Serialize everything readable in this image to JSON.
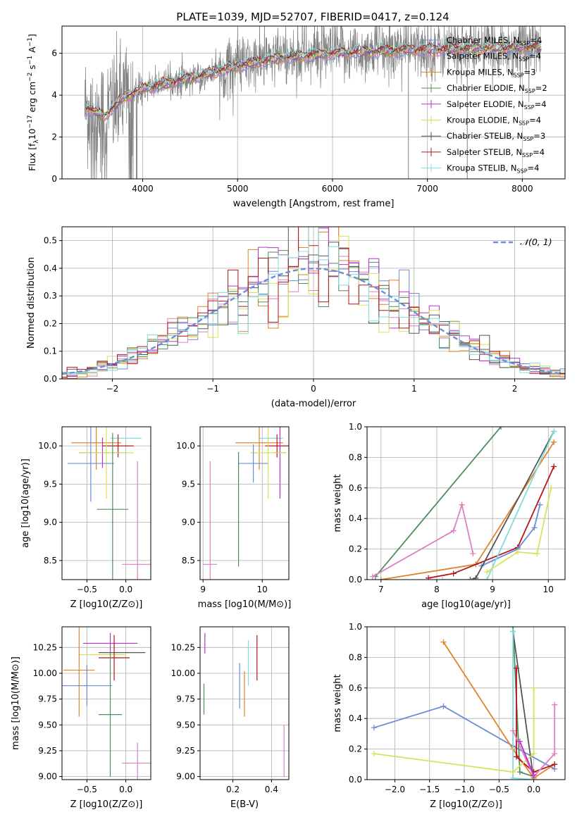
{
  "figure": {
    "title": "PLATE=1039, MJD=52707, FIBERID=0417, z=0.124"
  },
  "colors": {
    "Chabrier MILES": "#6b8dd6",
    "Salpeter MILES": "#e07fbf",
    "Kroupa MILES": "#e0842a",
    "Chabrier ELODIE": "#4f8f5a",
    "Salpeter ELODIE": "#b633c9",
    "Kroupa ELODIE": "#d6e25a",
    "Chabrier STELIB": "#555555",
    "Salpeter STELIB": "#b5151b",
    "Kroupa STELIB": "#7fdcdc",
    "data": "#808080",
    "normal": "#6b8dd6"
  },
  "chart_data": [
    {
      "id": "spectrum",
      "type": "line",
      "xlabel": "wavelength [Angstrom, rest frame]",
      "ylabel_parts": {
        "a": "Flux [f",
        "b": "λ",
        "c": "10",
        "d": "−17",
        "e": " erg cm",
        "f": "−2",
        "g": " s",
        "h": "−1",
        "i": " A",
        "j": "−1",
        "k": "]"
      },
      "xlim": [
        3150,
        8450
      ],
      "ylim": [
        0,
        7.3
      ],
      "xticks": [
        4000,
        5000,
        6000,
        7000,
        8000
      ],
      "yticks": [
        0,
        2,
        4,
        6
      ],
      "legend": [
        {
          "name": "Chabrier MILES",
          "n": "4",
          "key": "Chabrier MILES"
        },
        {
          "name": "Salpeter MILES",
          "n": "4",
          "key": "Salpeter MILES"
        },
        {
          "name": "Kroupa MILES",
          "n": "3",
          "key": "Kroupa MILES"
        },
        {
          "name": "Chabrier ELODIE",
          "n": "2",
          "key": "Chabrier ELODIE"
        },
        {
          "name": "Salpeter ELODIE",
          "n": "4",
          "key": "Salpeter ELODIE"
        },
        {
          "name": "Kroupa ELODIE",
          "n": "4",
          "key": "Kroupa ELODIE"
        },
        {
          "name": "Chabrier STELIB",
          "n": "3",
          "key": "Chabrier STELIB"
        },
        {
          "name": "Salpeter STELIB",
          "n": "4",
          "key": "Salpeter STELIB"
        },
        {
          "name": "Kroupa STELIB",
          "n": "4",
          "key": "Kroupa STELIB"
        }
      ],
      "legend_placement": "right",
      "continuum_points": [
        [
          3400,
          3.4
        ],
        [
          3600,
          3.0
        ],
        [
          3800,
          3.9
        ],
        [
          4000,
          4.3
        ],
        [
          4300,
          4.6
        ],
        [
          4600,
          4.9
        ],
        [
          5000,
          5.4
        ],
        [
          5500,
          5.8
        ],
        [
          6000,
          6.0
        ],
        [
          6500,
          6.1
        ],
        [
          7000,
          6.2
        ],
        [
          7500,
          6.2
        ],
        [
          8000,
          6.3
        ],
        [
          8200,
          6.3
        ]
      ],
      "data_range": [
        3390,
        8190
      ],
      "model_range": [
        3400,
        8200
      ]
    },
    {
      "id": "residuals",
      "type": "histogram",
      "xlabel": "(data-model)/error",
      "ylabel": "Normed distribution",
      "xlim": [
        -2.5,
        2.5
      ],
      "ylim": [
        0,
        0.55
      ],
      "xticks": [
        -2,
        -1,
        0,
        1,
        2
      ],
      "yticks": [
        0,
        0.1,
        0.2,
        0.3,
        0.4,
        0.5
      ],
      "bin_width": 0.1,
      "legend": [
        "𝒩(0, 1)"
      ],
      "legend_placement": "top-right"
    },
    {
      "id": "age_vs_Z",
      "type": "errorbar",
      "xlabel": "Z [log10(Z/Z⊙)]",
      "ylabel": "age [log10(age/yr)]",
      "xlim": [
        -0.82,
        0.32
      ],
      "ylim": [
        8.25,
        10.25
      ],
      "xticks": [
        -0.5,
        0.0
      ],
      "yticks": [
        8.5,
        9.0,
        9.5,
        10.0
      ],
      "points": [
        {
          "key": "Kroupa STELIB",
          "x": 0.0,
          "xerr": 0.2,
          "y": 10.1,
          "yerr": 0.0
        },
        {
          "key": "Kroupa MILES",
          "x": -0.38,
          "xerr": 0.32,
          "y": 10.04,
          "yerr": 0.35
        },
        {
          "key": "Salpeter STELIB",
          "x": -0.1,
          "xerr": 0.2,
          "y": 10.0,
          "yerr": 0.15
        },
        {
          "key": "Salpeter ELODIE",
          "x": -0.3,
          "xerr": 0.3,
          "y": 9.91,
          "yerr": 0.2
        },
        {
          "key": "Kroupa ELODIE",
          "x": -0.25,
          "xerr": 0.35,
          "y": 9.91,
          "yerr": 0.6
        },
        {
          "key": "Chabrier MILES",
          "x": -0.45,
          "xerr": 0.3,
          "y": 9.77,
          "yerr": 0.5
        },
        {
          "key": "Chabrier ELODIE",
          "x": -0.17,
          "xerr": 0.2,
          "y": 9.17,
          "yerr": 1.0
        },
        {
          "key": "Salpeter MILES",
          "x": 0.15,
          "xerr": 0.2,
          "y": 8.45,
          "yerr": 1.35
        }
      ]
    },
    {
      "id": "age_vs_mass",
      "type": "errorbar",
      "xlabel": "mass [log10(M/M⊙)]",
      "ylabel": "",
      "xlim": [
        8.95,
        10.45
      ],
      "ylim": [
        8.25,
        10.25
      ],
      "xticks": [
        9,
        10
      ],
      "yticks": [
        8.5,
        9.0,
        9.5,
        10.0
      ],
      "points": [
        {
          "key": "Kroupa STELIB",
          "x": 10.15,
          "xerr": 0.2,
          "y": 10.1,
          "yerr": 0.0
        },
        {
          "key": "Kroupa MILES",
          "x": 9.95,
          "xerr": 0.4,
          "y": 10.04,
          "yerr": 0.35
        },
        {
          "key": "Salpeter STELIB",
          "x": 10.25,
          "xerr": 0.2,
          "y": 10.0,
          "yerr": 0.15
        },
        {
          "key": "Salpeter ELODIE",
          "x": 10.3,
          "xerr": 0.1,
          "y": 9.91,
          "yerr": 0.6
        },
        {
          "key": "Kroupa ELODIE",
          "x": 10.1,
          "xerr": 0.3,
          "y": 9.91,
          "yerr": 0.6
        },
        {
          "key": "Chabrier MILES",
          "x": 9.85,
          "xerr": 0.25,
          "y": 9.77,
          "yerr": 0.25
        },
        {
          "key": "Chabrier ELODIE",
          "x": 9.6,
          "xerr": 0.0,
          "y": 9.17,
          "yerr": 0.75
        },
        {
          "key": "Salpeter MILES",
          "x": 9.12,
          "xerr": 0.12,
          "y": 8.45,
          "yerr": 1.35
        }
      ]
    },
    {
      "id": "mass_weight_vs_age",
      "type": "line",
      "xlabel": "age [log10(age/yr)]",
      "ylabel": "mass weight",
      "xlim": [
        6.75,
        10.3
      ],
      "ylim": [
        0,
        1.0
      ],
      "xticks": [
        7,
        8,
        9,
        10
      ],
      "yticks": [
        0,
        0.2,
        0.4,
        0.6,
        0.8,
        1.0
      ],
      "series": [
        {
          "key": "Chabrier ELODIE",
          "x": [
            6.9,
            9.15
          ],
          "y": [
            0.02,
            1.0
          ]
        },
        {
          "key": "Salpeter MILES",
          "x": [
            6.85,
            8.3,
            8.45,
            8.65
          ],
          "y": [
            0.02,
            0.32,
            0.49,
            0.17
          ]
        },
        {
          "key": "Kroupa MILES",
          "x": [
            7.0,
            8.7,
            10.1
          ],
          "y": [
            0.0,
            0.1,
            0.9
          ]
        },
        {
          "key": "Salpeter STELIB",
          "x": [
            7.85,
            8.3,
            9.45,
            10.1
          ],
          "y": [
            0.01,
            0.04,
            0.21,
            0.74
          ]
        },
        {
          "key": "Chabrier MILES",
          "x": [
            8.8,
            9.45,
            9.75,
            9.85
          ],
          "y": [
            0.09,
            0.2,
            0.34,
            0.49
          ]
        },
        {
          "key": "Chabrier STELIB",
          "x": [
            8.6,
            8.7,
            10.1
          ],
          "y": [
            0.0,
            0.01,
            0.97
          ]
        },
        {
          "key": "Kroupa STELIB",
          "x": [
            8.1,
            8.9,
            10.1
          ],
          "y": [
            0.0,
            0.0,
            0.97
          ]
        },
        {
          "key": "Kroupa ELODIE",
          "x": [
            8.9,
            9.45,
            9.8,
            10.05
          ],
          "y": [
            0.05,
            0.18,
            0.17,
            0.6
          ]
        }
      ]
    },
    {
      "id": "mass_vs_Z",
      "type": "errorbar",
      "xlabel": "Z [log10(Z/Z⊙)]",
      "ylabel": "mass [log10(M/M⊙)]",
      "xlim": [
        -0.82,
        0.32
      ],
      "ylim": [
        8.97,
        10.45
      ],
      "xticks": [
        -0.5,
        0.0
      ],
      "yticks": [
        9.0,
        9.25,
        9.5,
        9.75,
        10.0,
        10.25
      ],
      "points": [
        {
          "key": "Salpeter ELODIE",
          "x": -0.2,
          "xerr": 0.35,
          "y": 10.29,
          "yerr": 0.1
        },
        {
          "key": "Chabrier STELIB",
          "x": -0.05,
          "xerr": 0.3,
          "y": 10.2,
          "yerr": 0.0
        },
        {
          "key": "Kroupa ELODIE",
          "x": -0.3,
          "xerr": 0.3,
          "y": 10.18,
          "yerr": 0.0
        },
        {
          "key": "Salpeter STELIB",
          "x": -0.15,
          "xerr": 0.2,
          "y": 10.15,
          "yerr": 0.22
        },
        {
          "key": "Kroupa MILES",
          "x": -0.6,
          "xerr": 0.2,
          "y": 10.03,
          "yerr": 0.45
        },
        {
          "key": "Chabrier MILES",
          "x": -0.5,
          "xerr": 0.32,
          "y": 9.88,
          "yerr": 0.2
        },
        {
          "key": "Chabrier ELODIE",
          "x": -0.2,
          "xerr": 0.15,
          "y": 9.6,
          "yerr": 0.6
        },
        {
          "key": "Salpeter MILES",
          "x": 0.15,
          "xerr": 0.2,
          "y": 9.13,
          "yerr": 0.2
        }
      ]
    },
    {
      "id": "mass_vs_EBV",
      "type": "errorbar",
      "xlabel": "E(B-V)",
      "ylabel": "",
      "xlim": [
        0.03,
        0.49
      ],
      "ylim": [
        8.97,
        10.45
      ],
      "xticks": [
        0.2,
        0.4
      ],
      "yticks": [
        9.0,
        9.25,
        9.5,
        9.75,
        10.0,
        10.25
      ],
      "points": [
        {
          "key": "Salpeter ELODIE",
          "x": 0.055,
          "xerr": 0.0,
          "y": 10.29,
          "yerr": 0.1
        },
        {
          "key": "Kroupa ELODIE",
          "x": 0.05,
          "xerr": 0.0,
          "y": 10.2,
          "yerr": 0.0
        },
        {
          "key": "Chabrier ELODIE",
          "x": 0.05,
          "xerr": 0.0,
          "y": 9.75,
          "yerr": 0.15
        },
        {
          "key": "Salpeter STELIB",
          "x": 0.325,
          "xerr": 0.0,
          "y": 10.15,
          "yerr": 0.22
        },
        {
          "key": "Kroupa STELIB",
          "x": 0.28,
          "xerr": 0.0,
          "y": 10.1,
          "yerr": 0.22
        },
        {
          "key": "Chabrier MILES",
          "x": 0.235,
          "xerr": 0.0,
          "y": 9.88,
          "yerr": 0.22
        },
        {
          "key": "Kroupa MILES",
          "x": 0.26,
          "xerr": 0.0,
          "y": 9.8,
          "yerr": 0.22
        },
        {
          "key": "Salpeter MILES",
          "x": 0.465,
          "xerr": 0.0,
          "y": 9.25,
          "yerr": 0.25
        }
      ]
    },
    {
      "id": "mass_weight_vs_Z",
      "type": "line",
      "xlabel": "Z [log10(Z/Z⊙)]",
      "ylabel": "mass weight",
      "xlim": [
        -2.4,
        0.45
      ],
      "ylim": [
        0,
        1.0
      ],
      "xticks": [
        -2.0,
        -1.5,
        -1.0,
        -0.5,
        0.0
      ],
      "yticks": [
        0,
        0.2,
        0.4,
        0.6,
        0.8,
        1.0
      ],
      "series": [
        {
          "key": "Chabrier MILES",
          "x": [
            -2.3,
            -1.3,
            -0.3,
            0.3
          ],
          "y": [
            0.34,
            0.48,
            0.22,
            0.07
          ]
        },
        {
          "key": "Kroupa MILES",
          "x": [
            -1.3,
            -0.3,
            0.0,
            0.3
          ],
          "y": [
            0.9,
            0.2,
            0.01,
            0.1
          ]
        },
        {
          "key": "Chabrier ELODIE",
          "x": [
            -0.3,
            -0.2,
            0.0
          ],
          "y": [
            1.0,
            0.05,
            0.02
          ]
        },
        {
          "key": "Chabrier STELIB",
          "x": [
            -0.3,
            0.0
          ],
          "y": [
            0.97,
            0.0
          ]
        },
        {
          "key": "Salpeter STELIB",
          "x": [
            -0.25,
            -0.25,
            0.0,
            0.3
          ],
          "y": [
            0.73,
            0.15,
            0.05,
            0.1
          ]
        },
        {
          "key": "Kroupa STELIB",
          "x": [
            -0.3,
            -0.3,
            0.0
          ],
          "y": [
            0.97,
            0.01,
            0.0
          ]
        },
        {
          "key": "Kroupa ELODIE",
          "x": [
            -2.3,
            -0.3,
            0.0,
            0.0
          ],
          "y": [
            0.17,
            0.05,
            0.17,
            0.6
          ]
        },
        {
          "key": "Salpeter MILES",
          "x": [
            -0.3,
            0.0,
            0.3,
            0.3
          ],
          "y": [
            0.32,
            0.02,
            0.17,
            0.49
          ]
        },
        {
          "key": "Salpeter ELODIE",
          "x": [
            -0.2,
            0.0
          ],
          "y": [
            0.25,
            0.03
          ]
        }
      ]
    }
  ]
}
